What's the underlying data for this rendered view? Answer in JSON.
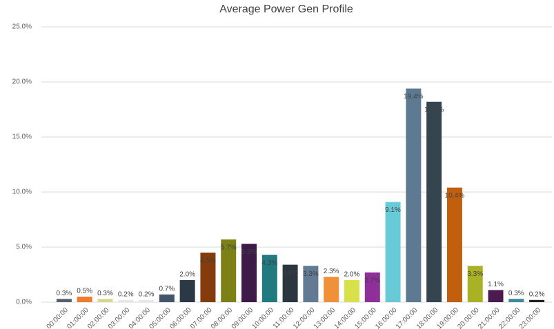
{
  "chart_data": {
    "type": "bar",
    "title": "Average Power Gen Profile",
    "categories": [
      "00:00:00",
      "01:00:00",
      "02:00:00",
      "03:00:00",
      "04:00:00",
      "05:00:00",
      "06:00:00",
      "07:00:00",
      "08:00:00",
      "09:00:00",
      "10:00:00",
      "11:00:00",
      "12:00:00",
      "13:00:00",
      "14:00:00",
      "15:00:00",
      "16:00:00",
      "17:00:00",
      "18:00:00",
      "19:00:00",
      "20:00:00",
      "21:00:00",
      "22:00:00",
      "23:00:00"
    ],
    "values": [
      0.3,
      0.5,
      0.3,
      0.2,
      0.2,
      0.7,
      2.0,
      4.5,
      5.7,
      5.3,
      4.3,
      3.4,
      3.3,
      2.3,
      2.0,
      2.7,
      9.1,
      19.4,
      18.2,
      10.4,
      3.3,
      1.1,
      0.3,
      0.2
    ],
    "value_labels": [
      "0.3%",
      "0.5%",
      "0.3%",
      "0.2%",
      "0.2%",
      "0.7%",
      "2.0%",
      "4.5%",
      "5.7%",
      "5.3%",
      "4.3%",
      "3.4%",
      "3.3%",
      "2.3%",
      "2.0%",
      "2.7%",
      "9.1%",
      "19.4%",
      "18.2%",
      "10.4%",
      "3.3%",
      "1.1%",
      "0.3%",
      "0.2%"
    ],
    "colors": [
      "#5a6270",
      "#ed7d31",
      "#d9d98c",
      "#e6e6e6",
      "#e6e6e6",
      "#44546a",
      "#2b3845",
      "#843c0c",
      "#7c8017",
      "#3e1a48",
      "#217a80",
      "#2b3640",
      "#627a92",
      "#f0913a",
      "#d8e04a",
      "#8e2f9a",
      "#67cad6",
      "#5e7a93",
      "#34454f",
      "#c0600e",
      "#a9b224",
      "#4b1a50",
      "#3a8a9a",
      "#1f1f1f"
    ],
    "ylim": [
      0,
      25
    ],
    "yticks": [
      {
        "value": 0,
        "label": "0.0%"
      },
      {
        "value": 5,
        "label": "5.0%"
      },
      {
        "value": 10,
        "label": "10.0%"
      },
      {
        "value": 15,
        "label": "15.0%"
      },
      {
        "value": 20,
        "label": "20.0%"
      },
      {
        "value": 25,
        "label": "25.0%"
      }
    ],
    "grid": true
  }
}
